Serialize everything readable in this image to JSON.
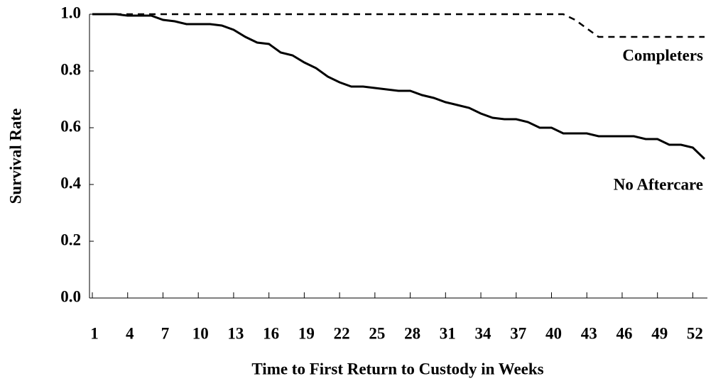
{
  "chart_data": {
    "type": "line",
    "xlabel": "Time to First Return to Custody in Weeks",
    "ylabel": "Survival Rate",
    "x": [
      1,
      2,
      3,
      4,
      5,
      6,
      7,
      8,
      9,
      10,
      11,
      12,
      13,
      14,
      15,
      16,
      17,
      18,
      19,
      20,
      21,
      22,
      23,
      24,
      25,
      26,
      27,
      28,
      29,
      30,
      31,
      32,
      33,
      34,
      35,
      36,
      37,
      38,
      39,
      40,
      41,
      42,
      43,
      44,
      45,
      46,
      47,
      48,
      49,
      50,
      51,
      52,
      53
    ],
    "series": [
      {
        "name": "Completers",
        "color": "#000000",
        "style": "dashed",
        "values": [
          1,
          1,
          1,
          1,
          1,
          1,
          1,
          1,
          1,
          1,
          1,
          1,
          1,
          1,
          1,
          1,
          1,
          1,
          1,
          1,
          1,
          1,
          1,
          1,
          1,
          1,
          1,
          1,
          1,
          1,
          1,
          1,
          1,
          1,
          1,
          1,
          1,
          1,
          1,
          1,
          1,
          0.98,
          0.95,
          0.92,
          0.92,
          0.92,
          0.92,
          0.92,
          0.92,
          0.92,
          0.92,
          0.92,
          0.92
        ]
      },
      {
        "name": "No Aftercare",
        "color": "#000000",
        "style": "solid",
        "values": [
          1,
          1,
          1,
          0.995,
          0.995,
          0.995,
          0.98,
          0.975,
          0.965,
          0.965,
          0.965,
          0.96,
          0.945,
          0.92,
          0.9,
          0.895,
          0.865,
          0.855,
          0.83,
          0.81,
          0.78,
          0.76,
          0.745,
          0.745,
          0.74,
          0.735,
          0.73,
          0.73,
          0.715,
          0.705,
          0.69,
          0.68,
          0.67,
          0.65,
          0.635,
          0.63,
          0.63,
          0.62,
          0.6,
          0.6,
          0.58,
          0.58,
          0.58,
          0.57,
          0.57,
          0.57,
          0.57,
          0.56,
          0.56,
          0.54,
          0.54,
          0.53,
          0.49
        ]
      }
    ],
    "xlim": [
      1,
      53
    ],
    "xticks": [
      1,
      4,
      7,
      10,
      13,
      16,
      19,
      22,
      25,
      28,
      31,
      34,
      37,
      40,
      43,
      46,
      49,
      52
    ],
    "ylim": [
      0,
      1
    ],
    "yticks": [
      {
        "value": 0,
        "label": "0.0"
      },
      0.2,
      0.4,
      0.6,
      0.8,
      {
        "value": 1,
        "label": "1.0"
      }
    ]
  }
}
